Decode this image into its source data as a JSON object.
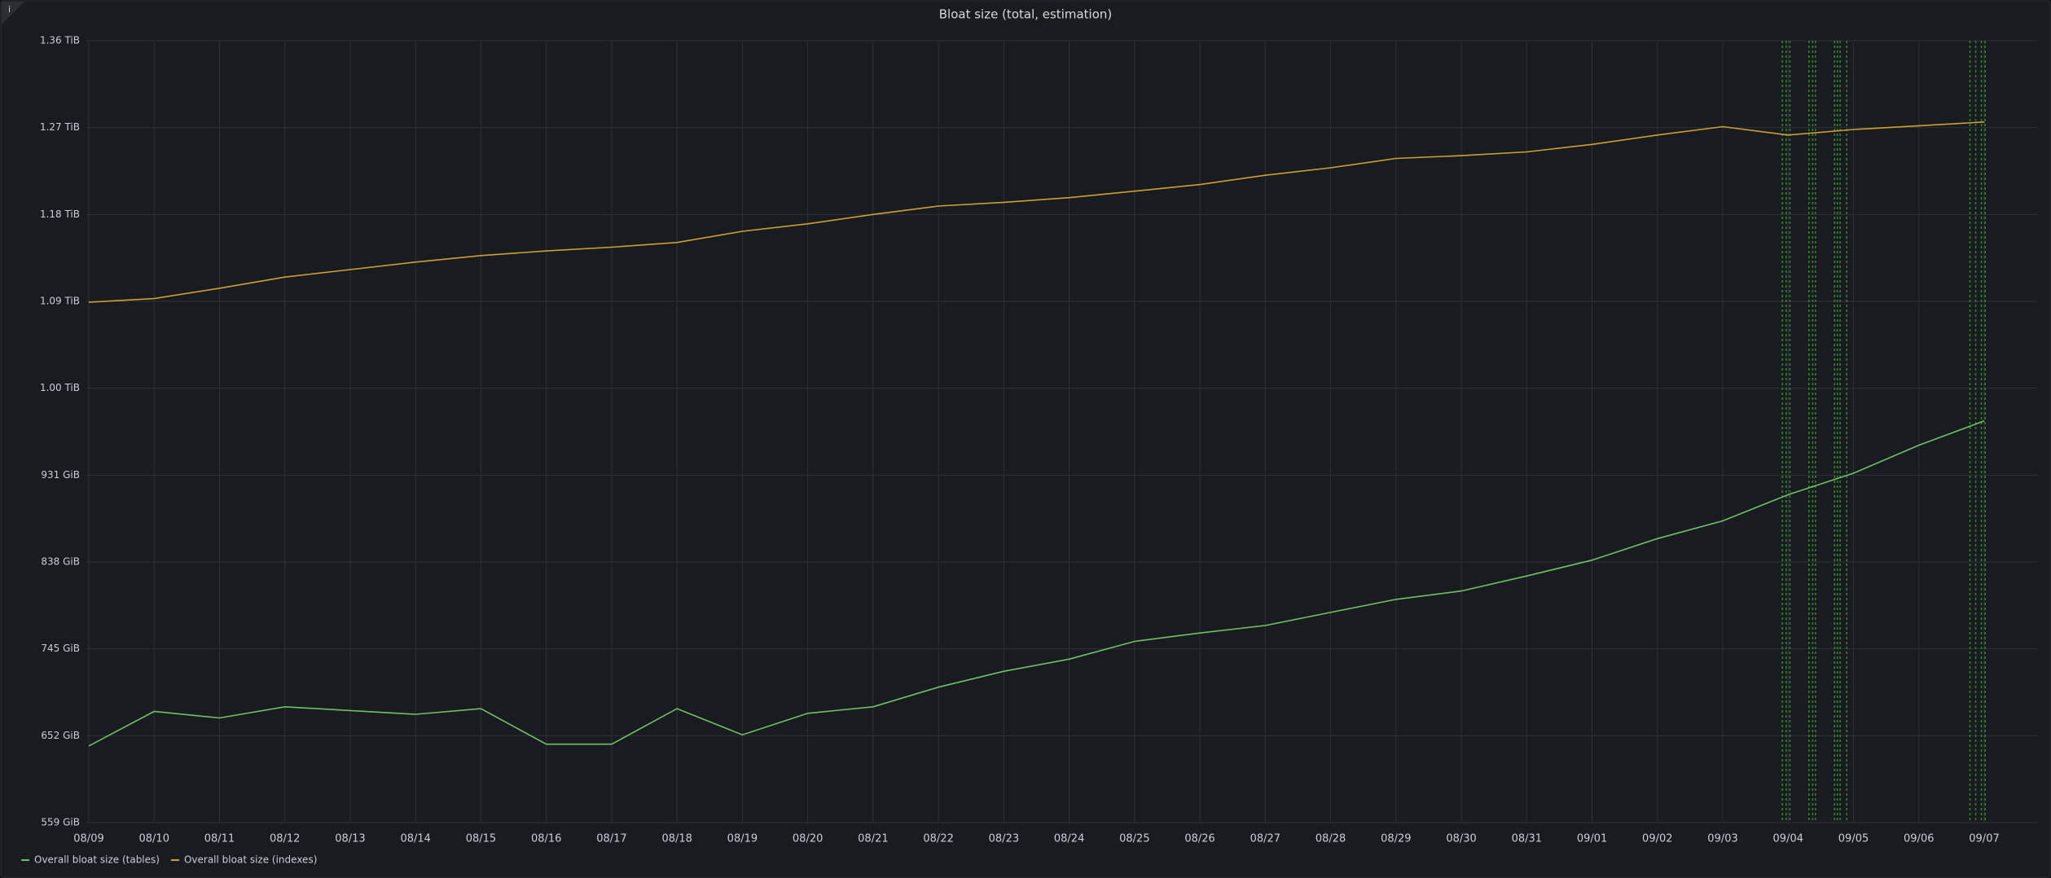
{
  "chart_data": {
    "type": "line",
    "title": "Bloat size (total, estimation)",
    "x": [
      "08/09",
      "08/10",
      "08/11",
      "08/12",
      "08/13",
      "08/14",
      "08/15",
      "08/16",
      "08/17",
      "08/18",
      "08/19",
      "08/20",
      "08/21",
      "08/22",
      "08/23",
      "08/24",
      "08/25",
      "08/26",
      "08/27",
      "08/28",
      "08/29",
      "08/30",
      "08/31",
      "09/01",
      "09/02",
      "09/03",
      "09/04",
      "09/05",
      "09/06",
      "09/07"
    ],
    "series": [
      {
        "name": "Overall bloat size (tables)",
        "color": "#73bf69",
        "values": [
          641,
          678,
          671,
          683,
          679,
          675,
          681,
          643,
          643,
          681,
          653,
          676,
          683,
          704,
          721,
          734,
          753,
          762,
          770,
          784,
          798,
          807,
          823,
          840,
          863,
          882,
          910,
          933,
          963,
          989
        ]
      },
      {
        "name": "Overall bloat size (indexes)",
        "color": "#cda033",
        "values": [
          1116,
          1120,
          1131,
          1143,
          1151,
          1159,
          1166,
          1171,
          1175,
          1180,
          1192,
          1200,
          1210,
          1219,
          1223,
          1228,
          1235,
          1242,
          1252,
          1260,
          1270,
          1273,
          1277,
          1285,
          1295,
          1304,
          1295,
          1301,
          1305,
          1309
        ]
      }
    ],
    "ylim": [
      559,
      1396
    ],
    "yticks": [
      {
        "value": 559,
        "label": "559 GiB"
      },
      {
        "value": 652,
        "label": "652 GiB"
      },
      {
        "value": 745,
        "label": "745 GiB"
      },
      {
        "value": 838,
        "label": "838 GiB"
      },
      {
        "value": 931,
        "label": "931 GiB"
      },
      {
        "value": 1024,
        "label": "1.00 TiB"
      },
      {
        "value": 1117,
        "label": "1.09 TiB"
      },
      {
        "value": 1210,
        "label": "1.18 TiB"
      },
      {
        "value": 1303,
        "label": "1.27 TiB"
      },
      {
        "value": 1396,
        "label": "1.36 TiB"
      }
    ],
    "grid": true
  }
}
